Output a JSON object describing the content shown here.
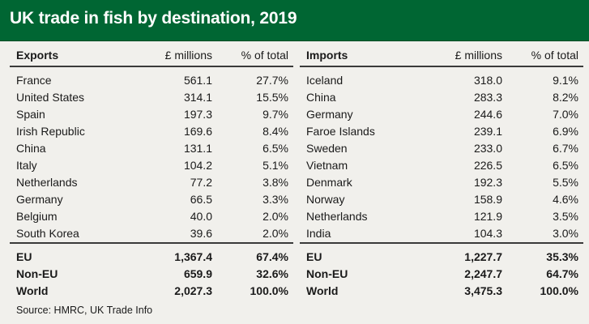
{
  "title": "UK trade in fish by destination, 2019",
  "source": "Source: HMRC, UK Trade Info",
  "chart_data": {
    "type": "table",
    "title": "UK trade in fish by destination, 2019",
    "tables": [
      {
        "heading": "Exports",
        "col_value": "£ millions",
        "col_pct": "% of total",
        "rows": [
          {
            "name": "France",
            "value": "561.1",
            "pct": "27.7%"
          },
          {
            "name": "United States",
            "value": "314.1",
            "pct": "15.5%"
          },
          {
            "name": "Spain",
            "value": "197.3",
            "pct": "9.7%"
          },
          {
            "name": "Irish Republic",
            "value": "169.6",
            "pct": "8.4%"
          },
          {
            "name": "China",
            "value": "131.1",
            "pct": "6.5%"
          },
          {
            "name": "Italy",
            "value": "104.2",
            "pct": "5.1%"
          },
          {
            "name": "Netherlands",
            "value": "77.2",
            "pct": "3.8%"
          },
          {
            "name": "Germany",
            "value": "66.5",
            "pct": "3.3%"
          },
          {
            "name": "Belgium",
            "value": "40.0",
            "pct": "2.0%"
          },
          {
            "name": "South Korea",
            "value": "39.6",
            "pct": "2.0%"
          }
        ],
        "totals": [
          {
            "name": "EU",
            "value": "1,367.4",
            "pct": "67.4%"
          },
          {
            "name": "Non-EU",
            "value": "659.9",
            "pct": "32.6%"
          },
          {
            "name": "World",
            "value": "2,027.3",
            "pct": "100.0%"
          }
        ]
      },
      {
        "heading": "Imports",
        "col_value": "£ millions",
        "col_pct": "% of total",
        "rows": [
          {
            "name": "Iceland",
            "value": "318.0",
            "pct": "9.1%"
          },
          {
            "name": "China",
            "value": "283.3",
            "pct": "8.2%"
          },
          {
            "name": "Germany",
            "value": "244.6",
            "pct": "7.0%"
          },
          {
            "name": "Faroe Islands",
            "value": "239.1",
            "pct": "6.9%"
          },
          {
            "name": "Sweden",
            "value": "233.0",
            "pct": "6.7%"
          },
          {
            "name": "Vietnam",
            "value": "226.5",
            "pct": "6.5%"
          },
          {
            "name": "Denmark",
            "value": "192.3",
            "pct": "5.5%"
          },
          {
            "name": "Norway",
            "value": "158.9",
            "pct": "4.6%"
          },
          {
            "name": "Netherlands",
            "value": "121.9",
            "pct": "3.5%"
          },
          {
            "name": "India",
            "value": "104.3",
            "pct": "3.0%"
          }
        ],
        "totals": [
          {
            "name": "EU",
            "value": "1,227.7",
            "pct": "35.3%"
          },
          {
            "name": "Non-EU",
            "value": "2,247.7",
            "pct": "64.7%"
          },
          {
            "name": "World",
            "value": "3,475.3",
            "pct": "100.0%"
          }
        ]
      }
    ]
  }
}
